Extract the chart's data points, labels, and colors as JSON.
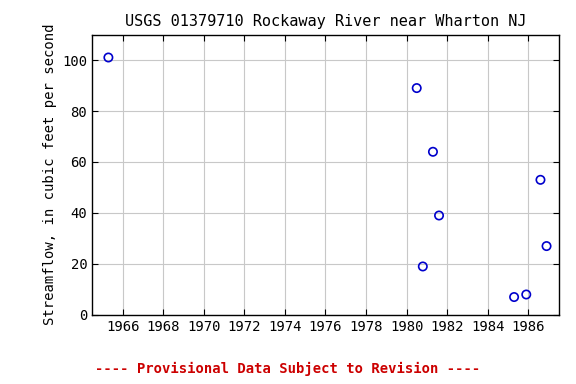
{
  "title": "USGS 01379710 Rockaway River near Wharton NJ",
  "ylabel": "Streamflow, in cubic feet per second",
  "x_data": [
    1965.3,
    1980.5,
    1981.3,
    1981.6,
    1980.8,
    1985.3,
    1985.9,
    1986.6,
    1986.9
  ],
  "y_data": [
    101,
    89,
    64,
    39,
    19,
    7,
    8,
    53,
    27
  ],
  "xlim": [
    1964.5,
    1987.5
  ],
  "ylim": [
    0,
    110
  ],
  "xticks": [
    1966,
    1968,
    1970,
    1972,
    1974,
    1976,
    1978,
    1980,
    1982,
    1984,
    1986
  ],
  "yticks": [
    0,
    20,
    40,
    60,
    80,
    100
  ],
  "marker_color": "#0000cc",
  "marker_size": 6,
  "marker_linewidth": 1.2,
  "grid_color": "#c8c8c8",
  "bg_color": "#ffffff",
  "footnote_text": "---- Provisional Data Subject to Revision ----",
  "footnote_color": "#cc0000",
  "title_fontsize": 11,
  "label_fontsize": 10,
  "tick_fontsize": 10,
  "footnote_fontsize": 10
}
